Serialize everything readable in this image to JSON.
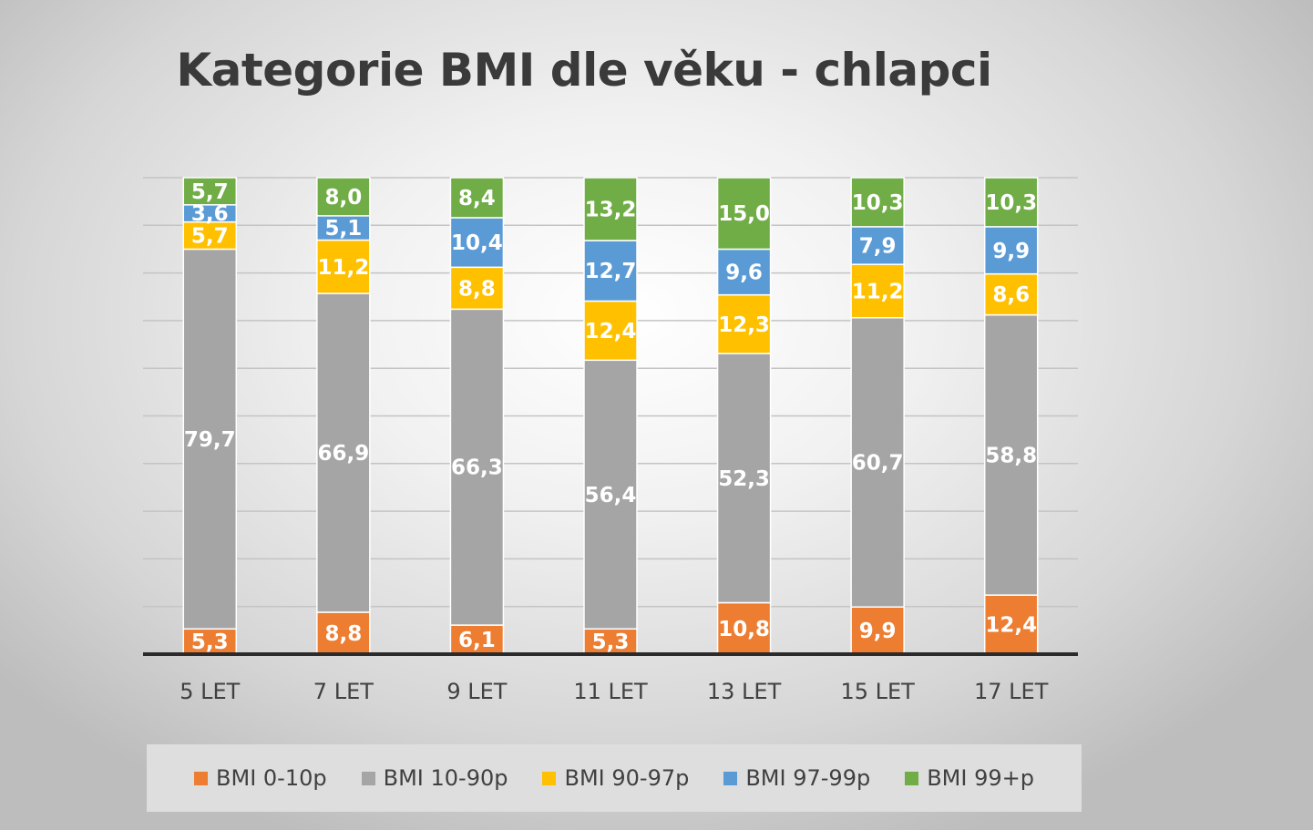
{
  "chart_data": {
    "type": "bar",
    "stacked": true,
    "title": "Kategorie BMI dle věku - chlapci",
    "xlabel": "",
    "ylabel": "",
    "ylim": [
      0,
      100
    ],
    "gridlines": true,
    "legend_position": "bottom",
    "categories": [
      "5 LET",
      "7 LET",
      "9 LET",
      "11 LET",
      "13 LET",
      "15 LET",
      "17 LET"
    ],
    "series": [
      {
        "name": "BMI 0-10p",
        "color": "#ed7d31",
        "values": [
          5.3,
          8.8,
          6.1,
          5.3,
          10.8,
          9.9,
          12.4
        ],
        "labels": [
          "5,3",
          "8,8",
          "6,1",
          "5,3",
          "10,8",
          "9,9",
          "12,4"
        ]
      },
      {
        "name": "BMI 10-90p",
        "color": "#a5a5a5",
        "values": [
          79.7,
          66.9,
          66.3,
          56.4,
          52.3,
          60.7,
          58.8
        ],
        "labels": [
          "79,7",
          "66,9",
          "66,3",
          "56,4",
          "52,3",
          "60,7",
          "58,8"
        ]
      },
      {
        "name": "BMI 90-97p",
        "color": "#ffc000",
        "values": [
          5.7,
          11.2,
          8.8,
          12.4,
          12.3,
          11.2,
          8.6
        ],
        "labels": [
          "5,7",
          "11,2",
          "8,8",
          "12,4",
          "12,3",
          "11,2",
          "8,6"
        ]
      },
      {
        "name": "BMI 97-99p",
        "color": "#5b9bd5",
        "values": [
          3.6,
          5.1,
          10.4,
          12.7,
          9.6,
          7.9,
          9.9
        ],
        "labels": [
          "3,6",
          "5,1",
          "10,4",
          "12,7",
          "9,6",
          "7,9",
          "9,9"
        ]
      },
      {
        "name": "BMI 99+p",
        "color": "#70ad47",
        "values": [
          5.7,
          8.0,
          8.4,
          13.2,
          15.0,
          10.3,
          10.3
        ],
        "labels": [
          "5,7",
          "8,0",
          "8,4",
          "13,2",
          "15,0",
          "10,3",
          "10,3"
        ]
      }
    ]
  }
}
